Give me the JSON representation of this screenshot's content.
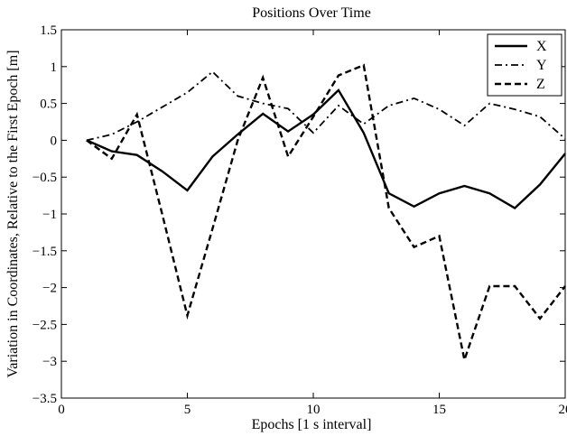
{
  "chart_data": {
    "type": "line",
    "title": "Positions Over Time",
    "xlabel": "Epochs [1 s interval]",
    "ylabel": "Variation in Coordinates, Relative to the First Epoch [m]",
    "xlim": [
      0,
      20
    ],
    "ylim": [
      -3.5,
      1.5
    ],
    "xticks": [
      0,
      5,
      10,
      15,
      20
    ],
    "yticks": [
      -3.5,
      -3,
      -2.5,
      -2,
      -1.5,
      -1,
      -0.5,
      0,
      0.5,
      1,
      1.5
    ],
    "xtick_labels": [
      "0",
      "5",
      "10",
      "15",
      "20"
    ],
    "ytick_labels": [
      "−3.5",
      "−3",
      "−2.5",
      "−2",
      "−1.5",
      "−1",
      "−0.5",
      "0",
      "0.5",
      "1",
      "1.5"
    ],
    "grid": false,
    "legend_position": "top-right",
    "x": [
      1,
      2,
      3,
      4,
      5,
      6,
      7,
      8,
      9,
      10,
      11,
      12,
      13,
      14,
      15,
      16,
      17,
      18,
      19,
      20
    ],
    "series": [
      {
        "name": "X",
        "line_style": "solid",
        "values": [
          0,
          -0.15,
          -0.2,
          -0.42,
          -0.68,
          -0.22,
          0.08,
          0.36,
          0.12,
          0.35,
          0.68,
          0.1,
          -0.72,
          -0.9,
          -0.72,
          -0.62,
          -0.72,
          -0.92,
          -0.6,
          -0.18
        ]
      },
      {
        "name": "Y",
        "line_style": "dashdot",
        "values": [
          0,
          0.08,
          0.25,
          0.45,
          0.65,
          0.93,
          0.6,
          0.5,
          0.43,
          0.1,
          0.47,
          0.22,
          0.47,
          0.57,
          0.42,
          0.2,
          0.5,
          0.42,
          0.32,
          0.02
        ]
      },
      {
        "name": "Z",
        "line_style": "dashed",
        "values": [
          0,
          -0.25,
          0.35,
          -1.0,
          -2.38,
          -1.2,
          0.0,
          0.85,
          -0.22,
          0.32,
          0.88,
          1.02,
          -0.92,
          -1.45,
          -1.3,
          -2.98,
          -1.98,
          -1.98,
          -2.42,
          -1.98
        ]
      }
    ]
  }
}
